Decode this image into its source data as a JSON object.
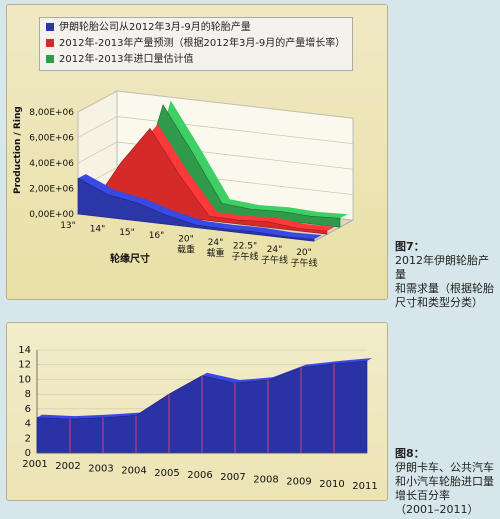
{
  "figure7": {
    "caption_title": "图7：",
    "caption_body": "2012年伊朗轮胎产量\n和需求量（根据轮胎\n尺寸和类型分类）",
    "chart_data": {
      "type": "area",
      "ylabel": "Production / Ring",
      "xlabel": "轮缘尺寸",
      "categories": [
        "13\"",
        "14\"",
        "15\"",
        "16\"",
        "20\"\n载重",
        "24\"\n载重",
        "22.5\"\n子午线",
        "24\"\n子午线",
        "20\"\n子午线"
      ],
      "ytick_labels": [
        "0,00E+00",
        "2,00E+06",
        "4,00E+06",
        "6,00E+06",
        "8,00E+06"
      ],
      "ylim": [
        0,
        8000000
      ],
      "series": [
        {
          "name": "伊朗轮胎公司从2012年3月-9月的轮胎产量",
          "color": "#2b36a8",
          "values": [
            2800000,
            1800000,
            1400000,
            700000,
            200000,
            150000,
            200000,
            100000,
            150000
          ]
        },
        {
          "name": "2012年-2013年产量预测（根据2012年3月-9月的产量增长率）",
          "color": "#d42a2a",
          "values": [
            0,
            3700000,
            6700000,
            3300000,
            350000,
            300000,
            450000,
            200000,
            250000
          ]
        },
        {
          "name": "2012年-2013年进口量估计值",
          "color": "#2e9a4a",
          "values": [
            0,
            0,
            8000000,
            4500000,
            800000,
            600000,
            700000,
            600000,
            700000
          ]
        }
      ]
    }
  },
  "figure8": {
    "caption_title": "图8：",
    "caption_body": "伊朗卡车、公共汽车\n和小汽车轮胎进口量\n增长百分率\n（2001–2011）",
    "chart_data": {
      "type": "area",
      "categories": [
        "2001",
        "2002",
        "2003",
        "2004",
        "2005",
        "2006",
        "2007",
        "2008",
        "2009",
        "2010",
        "2011"
      ],
      "ytick_labels": [
        "0",
        "2",
        "4",
        "6",
        "8",
        "10",
        "12",
        "14"
      ],
      "ylim": [
        0,
        14
      ],
      "series": [
        {
          "color": "#2a33a6",
          "values": [
            4.8,
            4.6,
            4.8,
            5.1,
            8.0,
            10.5,
            9.5,
            9.9,
            11.6,
            12.1,
            12.5
          ]
        }
      ]
    }
  }
}
